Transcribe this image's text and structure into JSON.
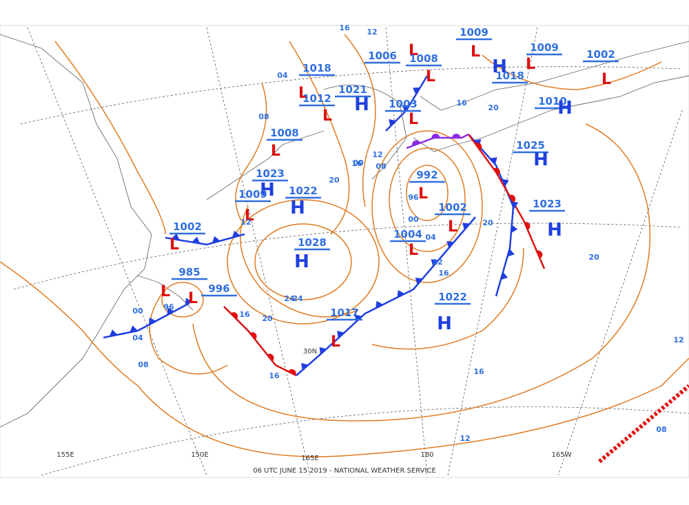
{
  "footer": "06 UTC JUNE 15 2019 - NATIONAL WEATHER SERVICE",
  "grid_labels": [
    "150E",
    "165E",
    "180",
    "165W",
    "30N",
    "155E"
  ],
  "centers": [
    {
      "pressure": "1009",
      "kind": "L"
    },
    {
      "pressure": "1006",
      "kind": "L"
    },
    {
      "pressure": "1008",
      "kind": "L"
    },
    {
      "pressure": "1018",
      "kind": "L"
    },
    {
      "pressure": "1012",
      "kind": "L"
    },
    {
      "pressure": "1021",
      "kind": "H"
    },
    {
      "pressure": "1003",
      "kind": "L"
    },
    {
      "pressure": "1008",
      "kind": "L"
    },
    {
      "pressure": "1023",
      "kind": "H"
    },
    {
      "pressure": "1022",
      "kind": "H"
    },
    {
      "pressure": "1009",
      "kind": "L"
    },
    {
      "pressure": "1028",
      "kind": "H"
    },
    {
      "pressure": "1002",
      "kind": "L"
    },
    {
      "pressure": "985",
      "kind": "L"
    },
    {
      "pressure": "996",
      "kind": "L"
    },
    {
      "pressure": "1017",
      "kind": "L"
    },
    {
      "pressure": "1022",
      "kind": "H"
    },
    {
      "pressure": "1004",
      "kind": "L"
    },
    {
      "pressure": "1002",
      "kind": "L"
    },
    {
      "pressure": "992",
      "kind": "L"
    },
    {
      "pressure": "1023",
      "kind": "H"
    },
    {
      "pressure": "1025",
      "kind": "H"
    },
    {
      "pressure": "1018",
      "kind": "H"
    },
    {
      "pressure": "1010",
      "kind": "H"
    },
    {
      "pressure": "1009",
      "kind": "L"
    },
    {
      "pressure": "1002",
      "kind": "L"
    }
  ],
  "isobar_labels": [
    "16",
    "12",
    "20",
    "08",
    "04",
    "00",
    "24",
    "96",
    "16",
    "12",
    "20",
    "16",
    "12",
    "08",
    "16",
    "20",
    "16",
    "12",
    "08",
    "04",
    "00",
    "16",
    "20",
    "12",
    "08",
    "00",
    "04",
    "96",
    "12",
    "16",
    "20",
    "24"
  ]
}
